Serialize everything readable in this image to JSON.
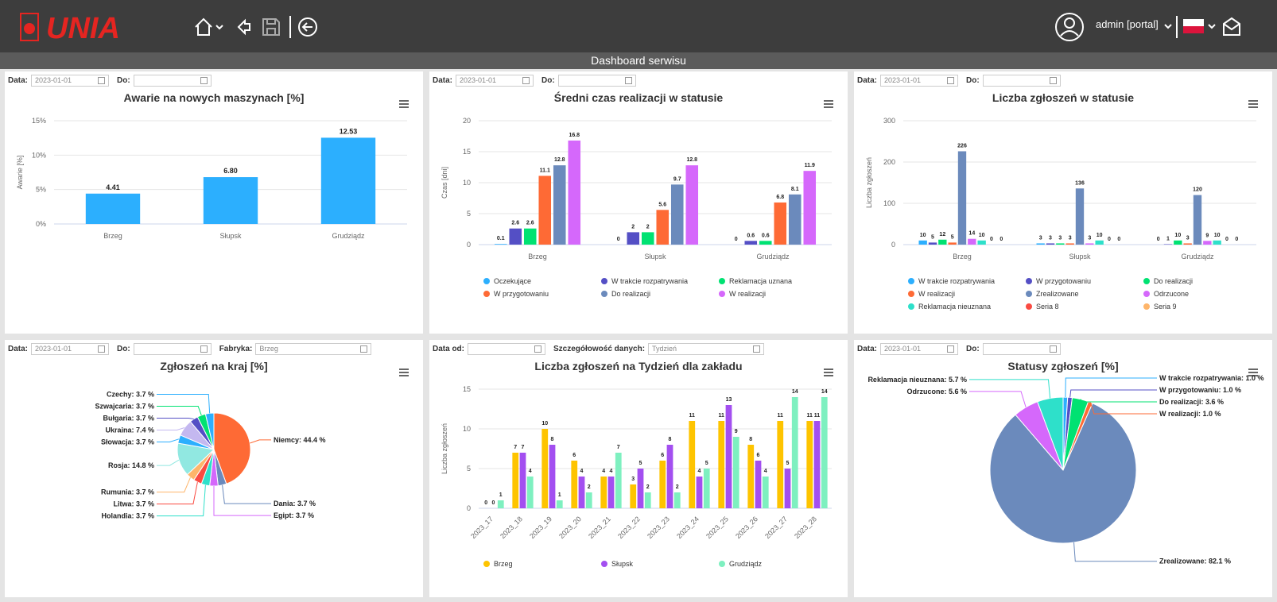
{
  "header": {
    "logo": "UNIA",
    "user": "admin [portal]",
    "subtitle": "Dashboard serwisu"
  },
  "panels": [
    {
      "filters": [
        {
          "label": "Data:",
          "value": "2023-01-01"
        },
        {
          "label": "Do:"
        }
      ]
    },
    {
      "filters": [
        {
          "label": "Data:",
          "value": "2023-01-01"
        },
        {
          "label": "Do:"
        }
      ]
    },
    {
      "filters": [
        {
          "label": "Data:",
          "value": "2023-01-01"
        },
        {
          "label": "Do:"
        }
      ]
    },
    {
      "filters": [
        {
          "label": "Data:",
          "value": "2023-01-01"
        },
        {
          "label": "Do:"
        },
        {
          "label": "Fabryka:",
          "value": "Brzeg",
          "select": true
        }
      ]
    },
    {
      "filters": [
        {
          "label": "Data od:"
        },
        {
          "label": "Szczegółowość danych:",
          "value": "Tydzień",
          "select": true
        }
      ]
    },
    {
      "filters": [
        {
          "label": "Data:",
          "value": "2023-01-01"
        },
        {
          "label": "Do:"
        }
      ]
    }
  ],
  "chart_data": [
    {
      "type": "bar",
      "title": "Awarie na nowych maszynach [%]",
      "y_label": "Awarie [%]",
      "categories": [
        "Brzeg",
        "Słupsk",
        "Grudziądz"
      ],
      "values": [
        4.41,
        6.8,
        12.53
      ],
      "value_labels": [
        "4.41",
        "6.80",
        "12.53"
      ],
      "color": "#2caffe",
      "ylim": [
        0,
        15
      ],
      "yticks": [
        {
          "value": 0,
          "label": "0%"
        },
        {
          "value": 5,
          "label": "5%"
        },
        {
          "value": 10,
          "label": "10%"
        },
        {
          "value": 15,
          "label": "15%"
        }
      ],
      "grid": true
    },
    {
      "type": "bar",
      "title": "Średni czas realizacji w statusie",
      "y_label": "Czas [dni]",
      "categories": [
        "Brzeg",
        "Słupsk",
        "Grudziądz"
      ],
      "series": [
        {
          "name": "Oczekujące",
          "color": "#2caffe",
          "values": [
            0.1,
            0,
            0
          ]
        },
        {
          "name": "W trakcie rozpatrywania",
          "color": "#544fc5",
          "values": [
            2.6,
            2,
            0.6
          ]
        },
        {
          "name": "Reklamacja uznana",
          "color": "#00e272",
          "values": [
            2.6,
            2,
            0.6
          ]
        },
        {
          "name": "W przygotowaniu",
          "color": "#fe6a35",
          "values": [
            11.1,
            5.6,
            6.8
          ]
        },
        {
          "name": "Do realizacji",
          "color": "#6b8abc",
          "values": [
            12.8,
            9.7,
            8.1
          ]
        },
        {
          "name": "W realizacji",
          "color": "#d568fb",
          "values": [
            16.8,
            12.8,
            11.9
          ]
        }
      ],
      "ylim": [
        0,
        20
      ],
      "yticks": [
        0,
        5,
        10,
        15,
        20
      ],
      "grid": true
    },
    {
      "type": "bar",
      "title": "Liczba zgłoszeń w statusie",
      "y_label": "Liczba zgłoszeń",
      "categories": [
        "Brzeg",
        "Słupsk",
        "Grudziądz"
      ],
      "series": [
        {
          "name": "W trakcie rozpatrywania",
          "color": "#2caffe",
          "values": [
            10,
            3,
            0
          ]
        },
        {
          "name": "W przygotowaniu",
          "color": "#544fc5",
          "values": [
            5,
            3,
            1
          ]
        },
        {
          "name": "Do realizacji",
          "color": "#00e272",
          "values": [
            12,
            3,
            10
          ]
        },
        {
          "name": "W realizacji",
          "color": "#fe6a35",
          "values": [
            5,
            3,
            3
          ]
        },
        {
          "name": "Zrealizowane",
          "color": "#6b8abc",
          "values": [
            226,
            136,
            120
          ]
        },
        {
          "name": "Odrzucone",
          "color": "#d568fb",
          "values": [
            14,
            3,
            9
          ]
        },
        {
          "name": "Reklamacja nieuznana",
          "color": "#2ee0ca",
          "values": [
            10,
            10,
            10
          ]
        },
        {
          "name": "Seria 8",
          "color": "#fa4b42",
          "values": [
            0,
            0,
            0
          ]
        },
        {
          "name": "Seria 9",
          "color": "#feb56a",
          "values": [
            0,
            0,
            0
          ]
        }
      ],
      "ylim": [
        0,
        300
      ],
      "yticks": [
        0,
        100,
        200,
        300
      ],
      "grid": true
    },
    {
      "type": "pie",
      "title": "Zgłoszeń na kraj [%]",
      "values": [
        44.4,
        3.7,
        3.7,
        3.7,
        3.7,
        3.7,
        14.8,
        3.7,
        7.4,
        3.7,
        3.7,
        3.7
      ],
      "value_labels": [
        "Niemcy: 44.4 %",
        "Dania: 3.7 %",
        "Egipt: 3.7 %",
        "Holandia: 3.7 %",
        "Litwa: 3.7 %",
        "Rumunia: 3.7 %",
        "Rosja: 14.8 %",
        "Słowacja: 3.7 %",
        "Ukraina: 7.4 %",
        "Bułgaria: 3.7 %",
        "Szwajcaria: 3.7 %",
        "Czechy: 3.7 %"
      ],
      "colors": [
        "#fe6a35",
        "#6b8abc",
        "#d568fb",
        "#2ee0ca",
        "#fa4b42",
        "#feb56a",
        "#91e8e1",
        "#2caffe",
        "#c4b8f0",
        "#544fc5",
        "#00e272",
        "#2caffe"
      ]
    },
    {
      "type": "bar",
      "title": "Liczba zgłoszeń na Tydzień dla zakładu",
      "y_label": "Liczba zgłoszeń",
      "categories": [
        "2023_17",
        "2023_18",
        "2023_19",
        "2023_20",
        "2023_21",
        "2023_22",
        "2023_23",
        "2023_24",
        "2023_25",
        "2023_26",
        "2023_27",
        "2023_28"
      ],
      "series": [
        {
          "name": "Brzeg",
          "color": "#fec400",
          "values": [
            0,
            7,
            10,
            6,
            4,
            3,
            6,
            11,
            11,
            8,
            11,
            11
          ]
        },
        {
          "name": "Słupsk",
          "color": "#a34ff0",
          "values": [
            0,
            7,
            8,
            4,
            4,
            5,
            8,
            4,
            13,
            6,
            5,
            11
          ]
        },
        {
          "name": "Grudziądz",
          "color": "#7ef0c0",
          "values": [
            1,
            4,
            1,
            2,
            7,
            2,
            2,
            5,
            9,
            4,
            14,
            14
          ]
        }
      ],
      "ylim": [
        0,
        15
      ],
      "yticks": [
        0,
        5,
        10,
        15
      ],
      "grid": true
    },
    {
      "type": "pie",
      "title": "Statusy zgłoszeń [%]",
      "values": [
        1.0,
        1.0,
        3.6,
        1.0,
        82.1,
        5.6,
        5.7
      ],
      "value_labels": [
        "W trakcie rozpatrywania: 1.0 %",
        "W przygotowaniu: 1.0 %",
        "Do realizacji: 3.6 %",
        "W realizacji: 1.0 %",
        "Zrealizowane: 82.1 %",
        "Odrzucone: 5.6 %",
        "Reklamacja nieuznana: 5.7 %"
      ],
      "colors": [
        "#2caffe",
        "#544fc5",
        "#00e272",
        "#fe6a35",
        "#6b8abc",
        "#d568fb",
        "#2ee0ca"
      ]
    }
  ]
}
